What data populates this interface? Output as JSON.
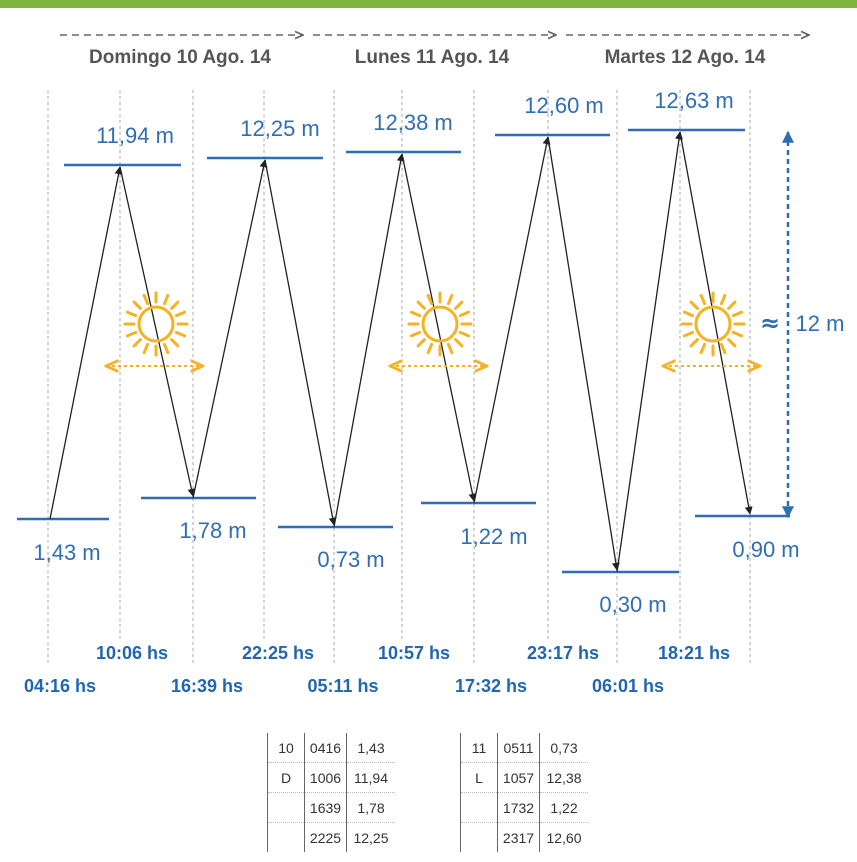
{
  "days": [
    {
      "label": "Domingo 10 Ago. 14"
    },
    {
      "label": "Lunes 11 Ago. 14"
    },
    {
      "label": "Martes 12 Ago. 14"
    }
  ],
  "events": [
    {
      "type": "low",
      "time": "04:16 hs",
      "height": "1,43 m"
    },
    {
      "type": "high",
      "time": "10:06 hs",
      "height": "11,94 m"
    },
    {
      "type": "low",
      "time": "16:39 hs",
      "height": "1,78 m"
    },
    {
      "type": "high",
      "time": "22:25 hs",
      "height": "12,25 m"
    },
    {
      "type": "low",
      "time": "05:11 hs",
      "height": "0,73 m"
    },
    {
      "type": "high",
      "time": "10:57 hs",
      "height": "12,38 m"
    },
    {
      "type": "low",
      "time": "17:32 hs",
      "height": "1,22 m"
    },
    {
      "type": "high",
      "time": "23:17 hs",
      "height": "12,60 m"
    },
    {
      "type": "low",
      "time": "06:01 hs",
      "height": "0,30 m"
    },
    {
      "type": "high",
      "time": "18:21 hs",
      "height": "12,63 m"
    },
    {
      "type": "low",
      "time": "",
      "height": "0,90 m"
    }
  ],
  "range": {
    "approx": "≈",
    "label": "12 m"
  },
  "tables": [
    {
      "rows": [
        [
          "10",
          "0416",
          "1,43"
        ],
        [
          "D",
          "1006",
          "11,94"
        ],
        [
          "",
          "1639",
          "1,78"
        ],
        [
          "",
          "2225",
          "12,25"
        ]
      ]
    },
    {
      "rows": [
        [
          "11",
          "0511",
          "0,73"
        ],
        [
          "L",
          "1057",
          "12,38"
        ],
        [
          "",
          "1732",
          "1,22"
        ],
        [
          "",
          "2317",
          "12,60"
        ]
      ]
    }
  ],
  "colors": {
    "accent_bar": "#7fb33b",
    "tide_line": "#2f6eb5",
    "label_blue": "#2166b3",
    "sun": "#f5b223"
  },
  "icons": [
    "sun-icon",
    "double-arrow-icon",
    "range-arrow-icon"
  ]
}
